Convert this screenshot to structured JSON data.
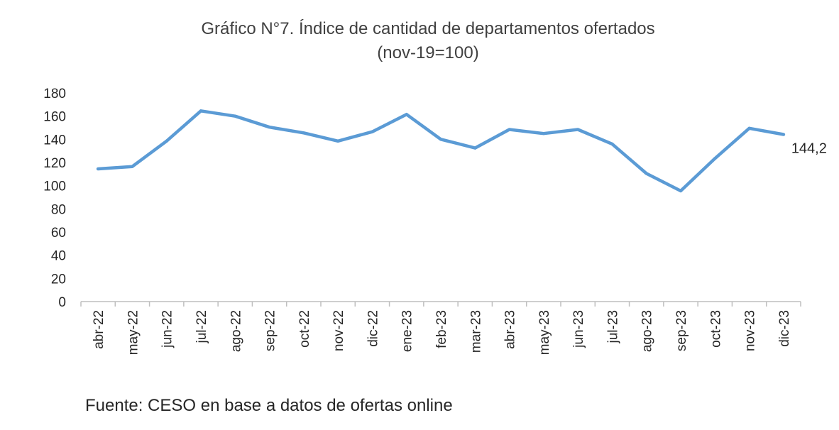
{
  "chart_data": {
    "type": "line",
    "title": "Gráfico N°7. Índice de cantidad de departamentos ofertados",
    "subtitle": "(nov-19=100)",
    "categories": [
      "abr-22",
      "may-22",
      "jun-22",
      "jul-22",
      "ago-22",
      "sep-22",
      "oct-22",
      "nov-22",
      "dic-22",
      "ene-23",
      "feb-23",
      "mar-23",
      "abr-23",
      "may-23",
      "jun-23",
      "jul-23",
      "ago-23",
      "sep-23",
      "oct-23",
      "nov-23",
      "dic-23"
    ],
    "series": [
      {
        "values": [
          114.5,
          116.5,
          138.5,
          164.5,
          160,
          150.5,
          145.5,
          138.5,
          146.5,
          161.5,
          140,
          132.5,
          148.5,
          145,
          148.5,
          136,
          110.5,
          95.5,
          123.5,
          149.5,
          144.2
        ]
      }
    ],
    "y_ticks": [
      "0",
      "20",
      "40",
      "60",
      "80",
      "100",
      "120",
      "140",
      "160",
      "180"
    ],
    "ylim": [
      0,
      180
    ],
    "xlabel": "",
    "ylabel": "",
    "grid": false,
    "legend": "none",
    "data_label": "144,2",
    "line_color": "#5B9BD5"
  },
  "footer": {
    "source": "Fuente: CESO en base a datos de ofertas online"
  }
}
